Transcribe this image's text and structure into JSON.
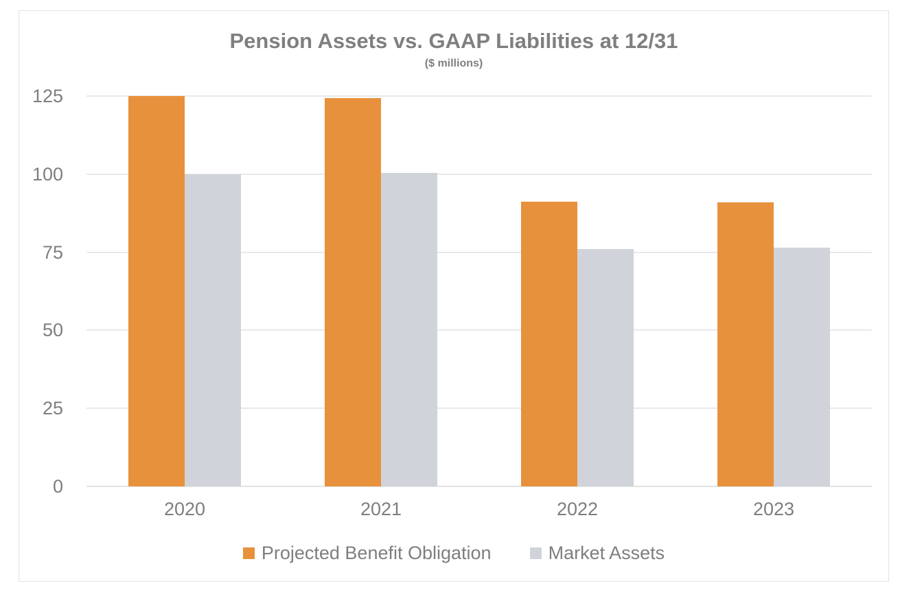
{
  "title": "Pension Assets vs. GAAP Liabilities at 12/31",
  "subtitle": "($ millions)",
  "colors": {
    "pbo_orange": "#E8913C",
    "assets_gray": "#D0D4DA",
    "text_gray": "#7E7E7E",
    "title_gray": "#7F7F7F",
    "gridline": "#E9E9E9",
    "frame_border": "#E2E2E2",
    "background": "#FFFFFF"
  },
  "chart_data": {
    "type": "bar",
    "title": "Pension Assets vs. GAAP Liabilities at 12/31",
    "subtitle": "($ millions)",
    "categories": [
      "2020",
      "2021",
      "2022",
      "2023"
    ],
    "series": [
      {
        "name": "Projected Benefit Obligation",
        "color": "#E8913C",
        "values": [
          125,
          124.4,
          91.1,
          90.9
        ]
      },
      {
        "name": "Market Assets",
        "color": "#D0D4DA",
        "values": [
          100,
          100.4,
          76.0,
          76.5
        ]
      }
    ],
    "xlabel": "",
    "ylabel": "",
    "ylim": [
      0,
      125
    ],
    "yticks": [
      0,
      25,
      50,
      75,
      100,
      125
    ],
    "grid": true,
    "legend_position": "bottom"
  }
}
